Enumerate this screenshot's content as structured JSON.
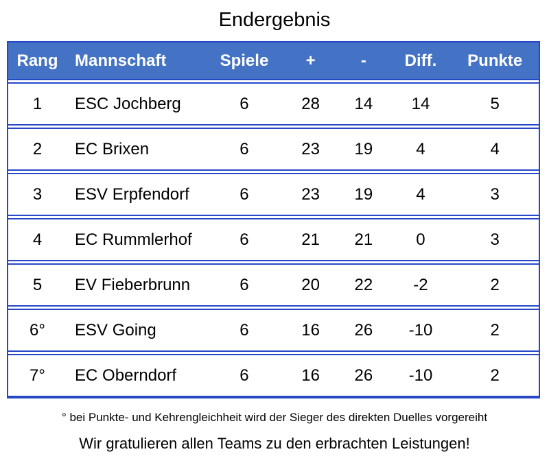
{
  "title": "Endergebnis",
  "colors": {
    "header_bg": "#4472C4",
    "header_text": "#FFFFFF",
    "border": "#2547C8",
    "text": "#000000"
  },
  "column_keys": [
    "rang",
    "mannschaft",
    "spiele",
    "plus",
    "minus",
    "diff",
    "punkte"
  ],
  "chart_data": {
    "type": "table",
    "title": "Endergebnis",
    "columns": [
      "Rang",
      "Mannschaft",
      "Spiele",
      "+",
      "-",
      "Diff.",
      "Punkte"
    ],
    "rows": [
      [
        "1",
        "ESC Jochberg",
        "6",
        "28",
        "14",
        "14",
        "5"
      ],
      [
        "2",
        "EC Brixen",
        "6",
        "23",
        "19",
        "4",
        "4"
      ],
      [
        "3",
        "ESV Erpfendorf",
        "6",
        "23",
        "19",
        "4",
        "3"
      ],
      [
        "4",
        "EC Rummlerhof",
        "6",
        "21",
        "21",
        "0",
        "3"
      ],
      [
        "5",
        "EV Fieberbrunn",
        "6",
        "20",
        "22",
        "-2",
        "2"
      ],
      [
        "6°",
        "ESV Going",
        "6",
        "16",
        "26",
        "-10",
        "2"
      ],
      [
        "7°",
        "EC Oberndorf",
        "6",
        "16",
        "26",
        "-10",
        "2"
      ]
    ]
  },
  "footnote": "° bei Punkte- und Kehrengleichheit wird der Sieger des direkten Duelles vorgereiht",
  "congratulations": "Wir gratulieren allen Teams zu den erbrachten Leistungen!"
}
